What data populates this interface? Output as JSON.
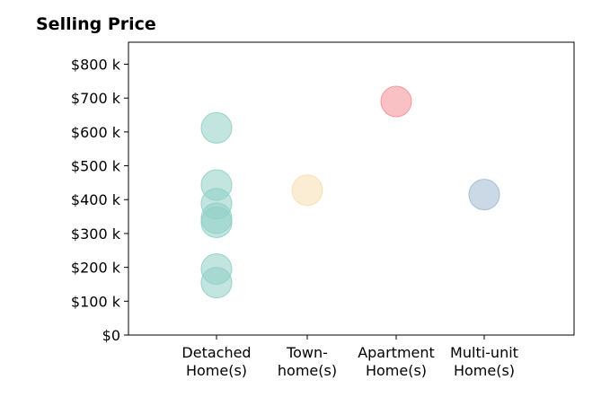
{
  "chart_data": {
    "type": "scatter",
    "title": "Selling Price",
    "xlabel": "",
    "ylabel": "",
    "categories": [
      [
        "Detached",
        "Home(s)"
      ],
      [
        "Town-",
        "home(s)"
      ],
      [
        "Apartment",
        "Home(s)"
      ],
      [
        "Multi-unit",
        "Home(s)"
      ]
    ],
    "category_colors": [
      "#8fcfc4",
      "#f7deb0",
      "#f58e94",
      "#9fbad0"
    ],
    "points": [
      {
        "category": 0,
        "value": 612000
      },
      {
        "category": 0,
        "value": 443000
      },
      {
        "category": 0,
        "value": 388000
      },
      {
        "category": 0,
        "value": 345000
      },
      {
        "category": 0,
        "value": 333000
      },
      {
        "category": 0,
        "value": 195000
      },
      {
        "category": 0,
        "value": 155000
      },
      {
        "category": 1,
        "value": 428000
      },
      {
        "category": 2,
        "value": 690000
      },
      {
        "category": 3,
        "value": 415000
      }
    ],
    "y_ticks": [
      0,
      100000,
      200000,
      300000,
      400000,
      500000,
      600000,
      700000,
      800000
    ],
    "y_tick_labels": [
      "$0",
      "$100 k",
      "$200 k",
      "$300 k",
      "$400 k",
      "$500 k",
      "$600 k",
      "$700 k",
      "$800 k"
    ],
    "ylim": [
      0,
      865000
    ],
    "grid": false,
    "legend": "none"
  }
}
